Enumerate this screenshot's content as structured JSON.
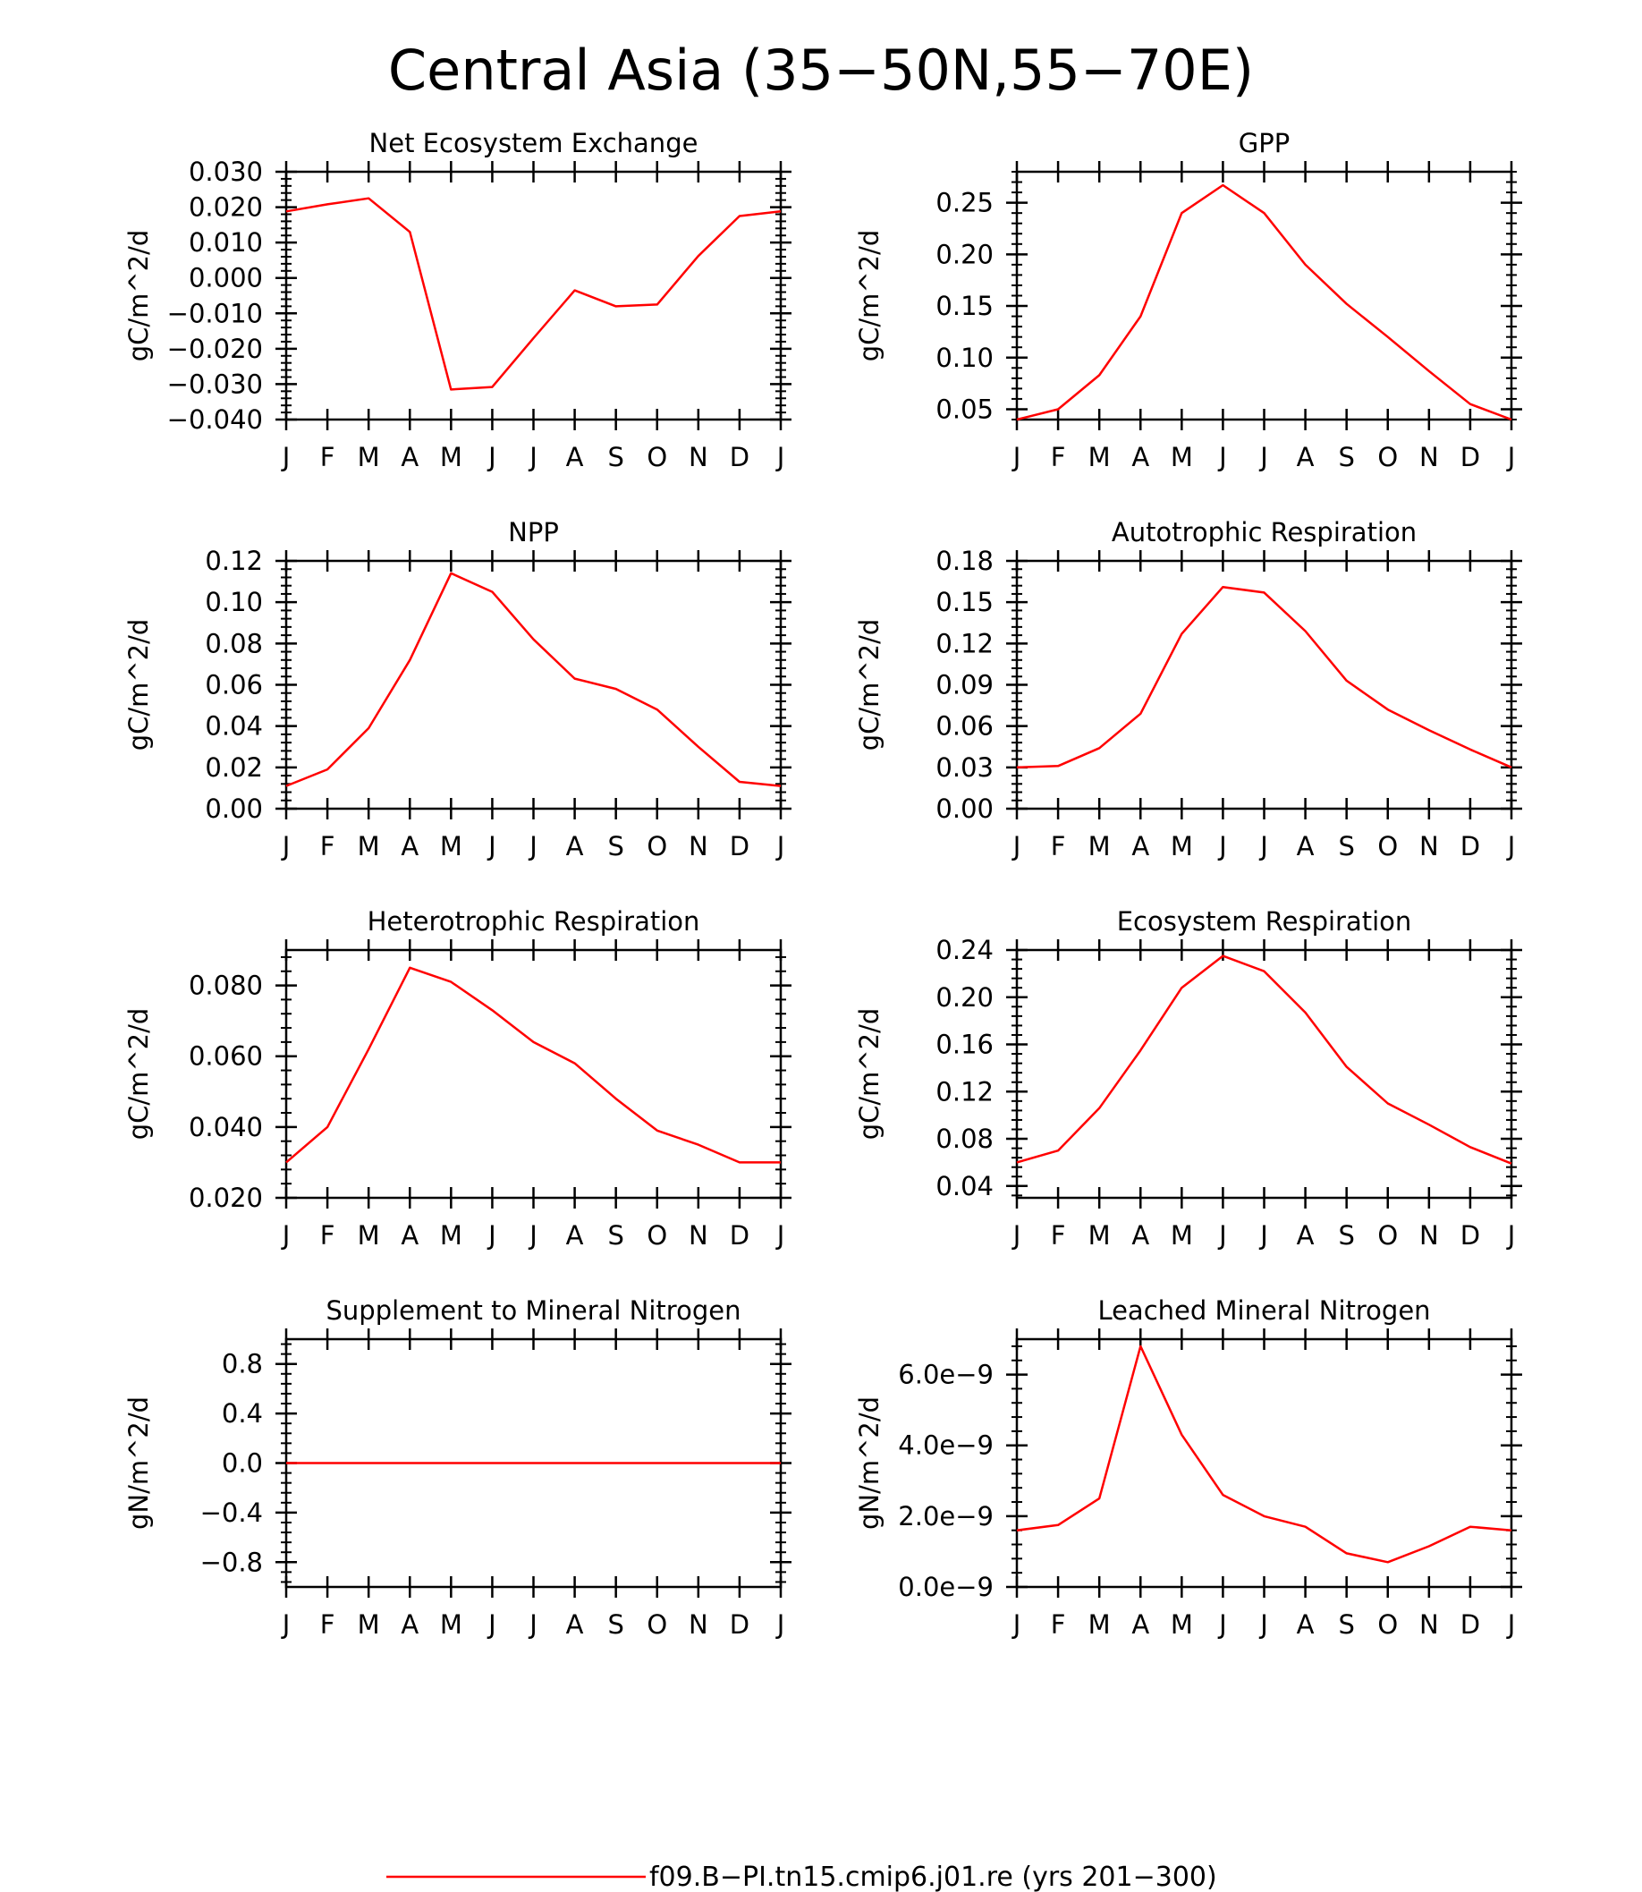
{
  "page_title": "Central Asia (35−50N,55−70E)",
  "months": [
    "J",
    "F",
    "M",
    "A",
    "M",
    "J",
    "J",
    "A",
    "S",
    "O",
    "N",
    "D",
    "J"
  ],
  "line_color": "#ff0000",
  "legend": {
    "label": "f09.B−PI.tn15.cmip6.j01.re (yrs 201−300)"
  },
  "chart_data": [
    {
      "type": "line",
      "title": "Net Ecosystem Exchange",
      "ylabel": "gC/m^2/d",
      "ylim": [
        -0.04,
        0.03
      ],
      "yticks": [
        -0.04,
        -0.03,
        -0.02,
        -0.01,
        0.0,
        0.01,
        0.02,
        0.03
      ],
      "ytick_labels": [
        "−0.040",
        "−0.030",
        "−0.020",
        "−0.010",
        "0.000",
        "0.010",
        "0.020",
        "0.030"
      ],
      "values": [
        0.0188,
        0.0208,
        0.0225,
        0.013,
        -0.0315,
        -0.0308,
        -0.017,
        -0.0035,
        -0.008,
        -0.0075,
        0.0062,
        0.0175,
        0.0188
      ]
    },
    {
      "type": "line",
      "title": "GPP",
      "ylabel": "gC/m^2/d",
      "ylim": [
        0.04,
        0.28
      ],
      "yticks": [
        0.05,
        0.1,
        0.15,
        0.2,
        0.25
      ],
      "ytick_labels": [
        "0.05",
        "0.10",
        "0.15",
        "0.20",
        "0.25"
      ],
      "values": [
        0.04,
        0.05,
        0.083,
        0.14,
        0.24,
        0.267,
        0.24,
        0.19,
        0.152,
        0.12,
        0.087,
        0.055,
        0.04
      ]
    },
    {
      "type": "line",
      "title": "NPP",
      "ylabel": "gC/m^2/d",
      "ylim": [
        0.0,
        0.12
      ],
      "yticks": [
        0.0,
        0.02,
        0.04,
        0.06,
        0.08,
        0.1,
        0.12
      ],
      "ytick_labels": [
        "0.00",
        "0.02",
        "0.04",
        "0.06",
        "0.08",
        "0.10",
        "0.12"
      ],
      "values": [
        0.011,
        0.019,
        0.039,
        0.072,
        0.114,
        0.105,
        0.082,
        0.063,
        0.058,
        0.048,
        0.03,
        0.013,
        0.011
      ]
    },
    {
      "type": "line",
      "title": "Autotrophic Respiration",
      "ylabel": "gC/m^2/d",
      "ylim": [
        0.0,
        0.18
      ],
      "yticks": [
        0.0,
        0.03,
        0.06,
        0.09,
        0.12,
        0.15,
        0.18
      ],
      "ytick_labels": [
        "0.00",
        "0.03",
        "0.06",
        "0.09",
        "0.12",
        "0.15",
        "0.18"
      ],
      "values": [
        0.03,
        0.031,
        0.044,
        0.069,
        0.127,
        0.161,
        0.157,
        0.129,
        0.093,
        0.072,
        0.057,
        0.043,
        0.03
      ]
    },
    {
      "type": "line",
      "title": "Heterotrophic Respiration",
      "ylabel": "gC/m^2/d",
      "ylim": [
        0.02,
        0.09
      ],
      "yticks": [
        0.02,
        0.04,
        0.06,
        0.08
      ],
      "ytick_labels": [
        "0.020",
        "0.040",
        "0.060",
        "0.080"
      ],
      "values": [
        0.03,
        0.04,
        0.062,
        0.085,
        0.081,
        0.073,
        0.064,
        0.058,
        0.048,
        0.039,
        0.035,
        0.03,
        0.03
      ]
    },
    {
      "type": "line",
      "title": "Ecosystem Respiration",
      "ylabel": "gC/m^2/d",
      "ylim": [
        0.03,
        0.24
      ],
      "yticks": [
        0.04,
        0.08,
        0.12,
        0.16,
        0.2,
        0.24
      ],
      "ytick_labels": [
        "0.04",
        "0.08",
        "0.12",
        "0.16",
        "0.20",
        "0.24"
      ],
      "values": [
        0.06,
        0.07,
        0.106,
        0.155,
        0.208,
        0.235,
        0.222,
        0.187,
        0.141,
        0.11,
        0.092,
        0.073,
        0.059
      ]
    },
    {
      "type": "line",
      "title": "Supplement to Mineral Nitrogen",
      "ylabel": "gN/m^2/d",
      "ylim": [
        -1.0,
        1.0
      ],
      "yticks": [
        -0.8,
        -0.4,
        0.0,
        0.4,
        0.8
      ],
      "ytick_labels": [
        "−0.8",
        "−0.4",
        "0.0",
        "0.4",
        "0.8"
      ],
      "values": [
        0,
        0,
        0,
        0,
        0,
        0,
        0,
        0,
        0,
        0,
        0,
        0,
        0
      ]
    },
    {
      "type": "line",
      "title": "Leached Mineral Nitrogen",
      "ylabel": "gN/m^2/d",
      "ylim": [
        0.0,
        7e-09
      ],
      "yticks": [
        0.0,
        2e-09,
        4e-09,
        6e-09
      ],
      "ytick_labels": [
        "0.0e−9",
        "2.0e−9",
        "4.0e−9",
        "6.0e−9"
      ],
      "values": [
        1.6e-09,
        1.75e-09,
        2.5e-09,
        6.8e-09,
        4.3e-09,
        2.6e-09,
        2e-09,
        1.7e-09,
        9.5e-10,
        7e-10,
        1.15e-09,
        1.7e-09,
        1.6e-09
      ]
    }
  ]
}
